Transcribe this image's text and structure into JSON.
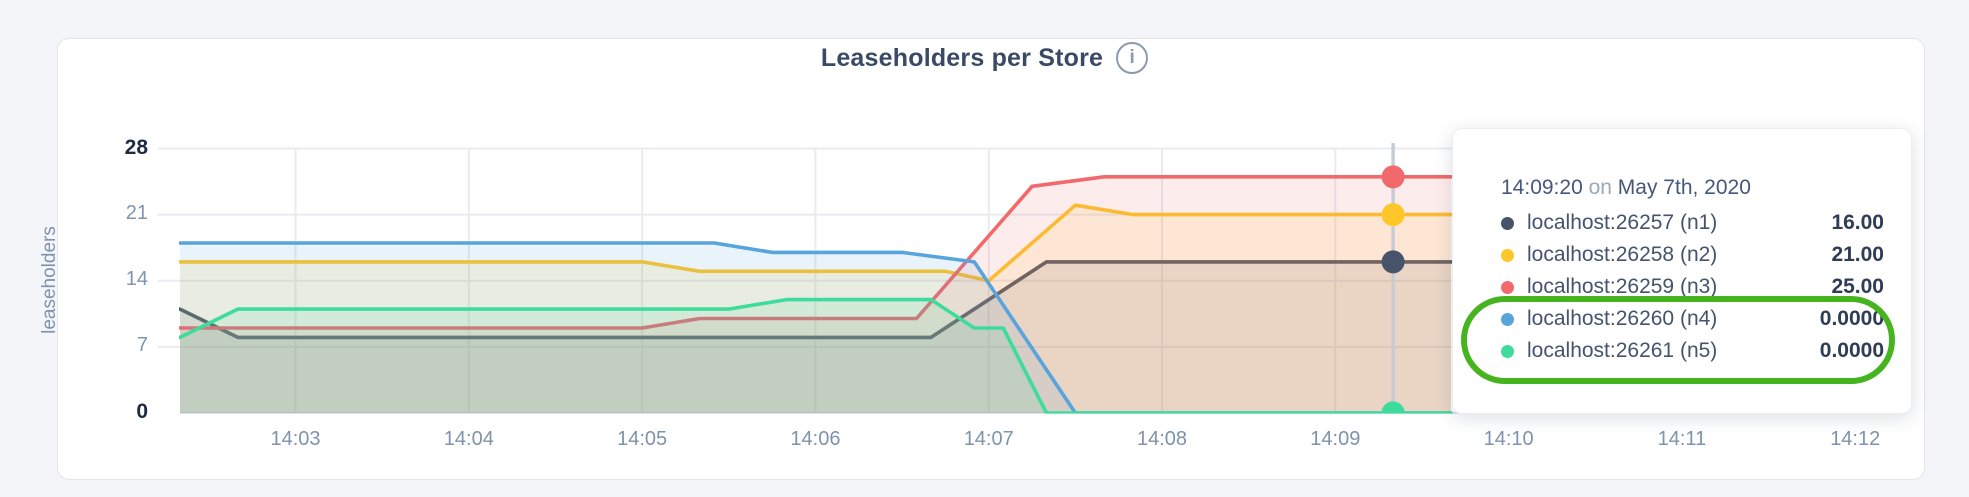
{
  "header": {
    "title": "Leaseholders per Store",
    "info_icon_glyph": "i"
  },
  "colors": {
    "page_bg": "#F4F5F8",
    "card_bg": "#FFFFFF",
    "grid": "#E9EBF1",
    "axis_line": "#DFE3EA",
    "hover_line": "#C6CCD5",
    "tick_muted": "#8095AB",
    "tick_bold": "#1E2B45",
    "annotation_green": "#45B41E"
  },
  "chart_data": {
    "type": "area",
    "title": "Leaseholders per Store",
    "ylabel": "leaseholders",
    "ylim": [
      0,
      28
    ],
    "yticks": [
      0,
      7,
      14,
      21,
      28
    ],
    "ybold": [
      0,
      28
    ],
    "xticks": [
      "14:03",
      "14:04",
      "14:05",
      "14:06",
      "14:07",
      "14:08",
      "14:09",
      "14:10",
      "14:11",
      "14:12"
    ],
    "x_data_start": "14:02:20",
    "x_data_end": "14:09:40",
    "x_axis_end": "14:12:00",
    "grid": true,
    "fill_opacity": 0.13,
    "series": [
      {
        "name": "localhost:26257 (n1)",
        "color": "#46536A",
        "points": [
          [
            "14:02:20",
            11
          ],
          [
            "14:02:40",
            8
          ],
          [
            "14:06:40",
            8
          ],
          [
            "14:07:20",
            16
          ],
          [
            "14:09:40",
            16
          ]
        ]
      },
      {
        "name": "localhost:26258 (n2)",
        "color": "#FFC629",
        "points": [
          [
            "14:02:20",
            16
          ],
          [
            "14:05:00",
            16
          ],
          [
            "14:05:20",
            15
          ],
          [
            "14:06:45",
            15
          ],
          [
            "14:07:00",
            14
          ],
          [
            "14:07:30",
            22
          ],
          [
            "14:07:50",
            21
          ],
          [
            "14:09:40",
            21
          ]
        ]
      },
      {
        "name": "localhost:26259 (n3)",
        "color": "#F2696B",
        "points": [
          [
            "14:02:20",
            9
          ],
          [
            "14:05:00",
            9
          ],
          [
            "14:05:20",
            10
          ],
          [
            "14:06:35",
            10
          ],
          [
            "14:07:15",
            24
          ],
          [
            "14:07:40",
            25
          ],
          [
            "14:09:40",
            25
          ]
        ]
      },
      {
        "name": "localhost:26260 (n4)",
        "color": "#58A4DC",
        "points": [
          [
            "14:02:20",
            18
          ],
          [
            "14:05:25",
            18
          ],
          [
            "14:05:45",
            17
          ],
          [
            "14:06:30",
            17
          ],
          [
            "14:06:55",
            16
          ],
          [
            "14:07:30",
            0
          ],
          [
            "14:09:40",
            0
          ]
        ]
      },
      {
        "name": "localhost:26261 (n5)",
        "color": "#3EDC9B",
        "points": [
          [
            "14:02:20",
            8
          ],
          [
            "14:02:40",
            11
          ],
          [
            "14:05:30",
            11
          ],
          [
            "14:05:50",
            12
          ],
          [
            "14:06:40",
            12
          ],
          [
            "14:06:55",
            9
          ],
          [
            "14:07:05",
            9
          ],
          [
            "14:07:20",
            0
          ],
          [
            "14:09:40",
            0
          ]
        ]
      }
    ],
    "hover": {
      "time": "14:09:20",
      "values": [
        16,
        21,
        25,
        0,
        0
      ]
    },
    "legend_position": "tooltip-overlay"
  },
  "tooltip": {
    "time": "14:09:20",
    "conjunction": "on",
    "date": "May 7th, 2020",
    "rows": [
      {
        "label": "localhost:26257 (n1)",
        "value": "16.00",
        "color": "#46536A",
        "highlighted": false
      },
      {
        "label": "localhost:26258 (n2)",
        "value": "21.00",
        "color": "#FFC629",
        "highlighted": false
      },
      {
        "label": "localhost:26259 (n3)",
        "value": "25.00",
        "color": "#F2696B",
        "highlighted": false
      },
      {
        "label": "localhost:26260 (n4)",
        "value": "0.0000",
        "color": "#58A4DC",
        "highlighted": true
      },
      {
        "label": "localhost:26261 (n5)",
        "value": "0.0000",
        "color": "#3EDC9B",
        "highlighted": true
      }
    ]
  }
}
